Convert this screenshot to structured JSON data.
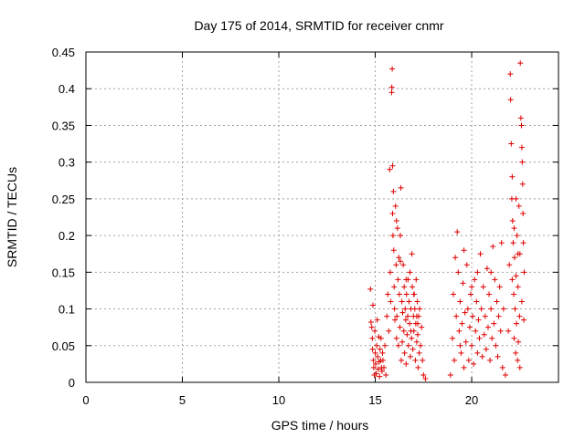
{
  "chart_data": {
    "type": "scatter",
    "title": "Day 175 of 2014, SRMTID for receiver cnmr",
    "xlabel": "GPS time / hours",
    "ylabel": "SRMTID / TECUs",
    "xlim": [
      0,
      24.5
    ],
    "ylim": [
      0,
      0.45
    ],
    "xticks": [
      0,
      5,
      10,
      15,
      20
    ],
    "yticks": [
      0,
      0.05,
      0.1,
      0.15,
      0.2,
      0.25,
      0.3,
      0.35,
      0.4,
      0.45
    ],
    "grid": true,
    "marker": "plus",
    "color": "#e00000",
    "points": [
      [
        14.75,
        0.127
      ],
      [
        14.78,
        0.082
      ],
      [
        14.82,
        0.075
      ],
      [
        14.85,
        0.06
      ],
      [
        14.86,
        0.045
      ],
      [
        14.88,
        0.105
      ],
      [
        14.9,
        0.03
      ],
      [
        14.92,
        0.02
      ],
      [
        14.95,
        0.01
      ],
      [
        14.98,
        0.07
      ],
      [
        15.0,
        0.04
      ],
      [
        15.02,
        0.025
      ],
      [
        15.05,
        0.012
      ],
      [
        15.08,
        0.05
      ],
      [
        15.1,
        0.085
      ],
      [
        15.12,
        0.035
      ],
      [
        15.15,
        0.018
      ],
      [
        15.18,
        0.062
      ],
      [
        15.2,
        0.028
      ],
      [
        15.22,
        0.008
      ],
      [
        15.25,
        0.045
      ],
      [
        15.28,
        0.03
      ],
      [
        15.3,
        0.06
      ],
      [
        15.32,
        0.02
      ],
      [
        15.35,
        0.015
      ],
      [
        15.38,
        0.04
      ],
      [
        15.4,
        0.03
      ],
      [
        15.45,
        0.02
      ],
      [
        15.5,
        0.05
      ],
      [
        15.55,
        0.01
      ],
      [
        15.6,
        0.09
      ],
      [
        15.65,
        0.12
      ],
      [
        15.7,
        0.07
      ],
      [
        15.75,
        0.29
      ],
      [
        15.78,
        0.15
      ],
      [
        15.8,
        0.11
      ],
      [
        15.85,
        0.395
      ],
      [
        15.86,
        0.402
      ],
      [
        15.88,
        0.427
      ],
      [
        15.9,
        0.295
      ],
      [
        15.92,
        0.2
      ],
      [
        15.94,
        0.26
      ],
      [
        15.96,
        0.18
      ],
      [
        15.98,
        0.13
      ],
      [
        16.0,
        0.1
      ],
      [
        16.02,
        0.085
      ],
      [
        16.05,
        0.24
      ],
      [
        16.08,
        0.16
      ],
      [
        16.1,
        0.06
      ],
      [
        16.12,
        0.09
      ],
      [
        16.15,
        0.21
      ],
      [
        16.18,
        0.14
      ],
      [
        16.2,
        0.05
      ],
      [
        16.22,
        0.17
      ],
      [
        16.25,
        0.12
      ],
      [
        16.28,
        0.075
      ],
      [
        16.3,
        0.2
      ],
      [
        16.33,
        0.265
      ],
      [
        16.35,
        0.03
      ],
      [
        16.38,
        0.11
      ],
      [
        16.4,
        0.055
      ],
      [
        16.42,
        0.095
      ],
      [
        16.45,
        0.16
      ],
      [
        16.48,
        0.07
      ],
      [
        16.5,
        0.13
      ],
      [
        16.52,
        0.04
      ],
      [
        16.55,
        0.1
      ],
      [
        16.58,
        0.085
      ],
      [
        16.6,
        0.025
      ],
      [
        16.62,
        0.12
      ],
      [
        16.65,
        0.065
      ],
      [
        16.68,
        0.09
      ],
      [
        16.7,
        0.14
      ],
      [
        16.72,
        0.05
      ],
      [
        16.75,
        0.11
      ],
      [
        16.78,
        0.08
      ],
      [
        16.8,
        0.15
      ],
      [
        16.82,
        0.035
      ],
      [
        16.85,
        0.1
      ],
      [
        16.88,
        0.06
      ],
      [
        16.9,
        0.175
      ],
      [
        16.92,
        0.13
      ],
      [
        16.95,
        0.045
      ],
      [
        16.98,
        0.09
      ],
      [
        17.0,
        0.07
      ],
      [
        17.02,
        0.12
      ],
      [
        17.05,
        0.1
      ],
      [
        17.08,
        0.03
      ],
      [
        17.1,
        0.08
      ],
      [
        17.12,
        0.14
      ],
      [
        17.15,
        0.055
      ],
      [
        17.18,
        0.11
      ],
      [
        17.2,
        0.065
      ],
      [
        17.22,
        0.02
      ],
      [
        17.25,
        0.09
      ],
      [
        17.28,
        0.04
      ],
      [
        17.3,
        0.1
      ],
      [
        17.35,
        0.05
      ],
      [
        17.4,
        0.075
      ],
      [
        17.45,
        0.03
      ],
      [
        17.5,
        0.01
      ],
      [
        17.6,
        0.005
      ],
      [
        17.2,
        0.08
      ],
      [
        16.3,
        0.165
      ],
      [
        16.1,
        0.22
      ],
      [
        15.9,
        0.23
      ],
      [
        16.6,
        0.14
      ],
      [
        17.0,
        0.12
      ],
      [
        17.15,
        0.09
      ],
      [
        16.85,
        0.07
      ],
      [
        18.9,
        0.01
      ],
      [
        19.0,
        0.06
      ],
      [
        19.05,
        0.12
      ],
      [
        19.1,
        0.03
      ],
      [
        19.15,
        0.17
      ],
      [
        19.2,
        0.09
      ],
      [
        19.25,
        0.205
      ],
      [
        19.3,
        0.15
      ],
      [
        19.35,
        0.07
      ],
      [
        19.4,
        0.11
      ],
      [
        19.45,
        0.04
      ],
      [
        19.5,
        0.08
      ],
      [
        19.55,
        0.135
      ],
      [
        19.6,
        0.02
      ],
      [
        19.65,
        0.095
      ],
      [
        19.7,
        0.055
      ],
      [
        19.75,
        0.16
      ],
      [
        19.8,
        0.1
      ],
      [
        19.85,
        0.03
      ],
      [
        19.9,
        0.075
      ],
      [
        19.95,
        0.12
      ],
      [
        20.0,
        0.05
      ],
      [
        20.05,
        0.09
      ],
      [
        20.1,
        0.025
      ],
      [
        20.15,
        0.14
      ],
      [
        20.2,
        0.07
      ],
      [
        20.25,
        0.11
      ],
      [
        20.3,
        0.04
      ],
      [
        20.35,
        0.085
      ],
      [
        20.4,
        0.06
      ],
      [
        20.45,
        0.175
      ],
      [
        20.5,
        0.1
      ],
      [
        20.55,
        0.035
      ],
      [
        20.6,
        0.13
      ],
      [
        20.65,
        0.065
      ],
      [
        20.7,
        0.09
      ],
      [
        20.75,
        0.045
      ],
      [
        20.8,
        0.155
      ],
      [
        20.85,
        0.075
      ],
      [
        20.9,
        0.12
      ],
      [
        20.95,
        0.03
      ],
      [
        21.0,
        0.1
      ],
      [
        21.05,
        0.06
      ],
      [
        21.1,
        0.185
      ],
      [
        21.15,
        0.08
      ],
      [
        21.2,
        0.14
      ],
      [
        21.25,
        0.05
      ],
      [
        21.3,
        0.11
      ],
      [
        21.35,
        0.035
      ],
      [
        21.4,
        0.09
      ],
      [
        21.45,
        0.13
      ],
      [
        21.5,
        0.07
      ],
      [
        21.55,
        0.19
      ],
      [
        21.6,
        0.02
      ],
      [
        21.65,
        0.1
      ],
      [
        20.0,
        0.13
      ],
      [
        20.3,
        0.15
      ],
      [
        19.6,
        0.18
      ],
      [
        21.0,
        0.15
      ],
      [
        19.4,
        0.05
      ],
      [
        21.75,
        0.01
      ],
      [
        21.9,
        0.07
      ],
      [
        21.95,
        0.16
      ],
      [
        22.0,
        0.42
      ],
      [
        22.02,
        0.385
      ],
      [
        22.05,
        0.325
      ],
      [
        22.08,
        0.25
      ],
      [
        22.1,
        0.28
      ],
      [
        22.12,
        0.22
      ],
      [
        22.15,
        0.19
      ],
      [
        22.18,
        0.12
      ],
      [
        22.2,
        0.06
      ],
      [
        22.22,
        0.17
      ],
      [
        22.25,
        0.1
      ],
      [
        22.28,
        0.04
      ],
      [
        22.3,
        0.145
      ],
      [
        22.32,
        0.08
      ],
      [
        22.35,
        0.2
      ],
      [
        22.38,
        0.03
      ],
      [
        22.4,
        0.13
      ],
      [
        22.42,
        0.055
      ],
      [
        22.45,
        0.24
      ],
      [
        22.48,
        0.09
      ],
      [
        22.5,
        0.175
      ],
      [
        22.52,
        0.435
      ],
      [
        22.55,
        0.36
      ],
      [
        22.58,
        0.35
      ],
      [
        22.6,
        0.32
      ],
      [
        22.62,
        0.3
      ],
      [
        22.64,
        0.27
      ],
      [
        22.66,
        0.23
      ],
      [
        22.68,
        0.19
      ],
      [
        22.7,
        0.085
      ],
      [
        22.72,
        0.15
      ],
      [
        22.5,
        0.02
      ],
      [
        22.3,
        0.25
      ],
      [
        22.2,
        0.21
      ],
      [
        22.6,
        0.11
      ],
      [
        22.4,
        0.175
      ],
      [
        22.1,
        0.14
      ]
    ]
  }
}
